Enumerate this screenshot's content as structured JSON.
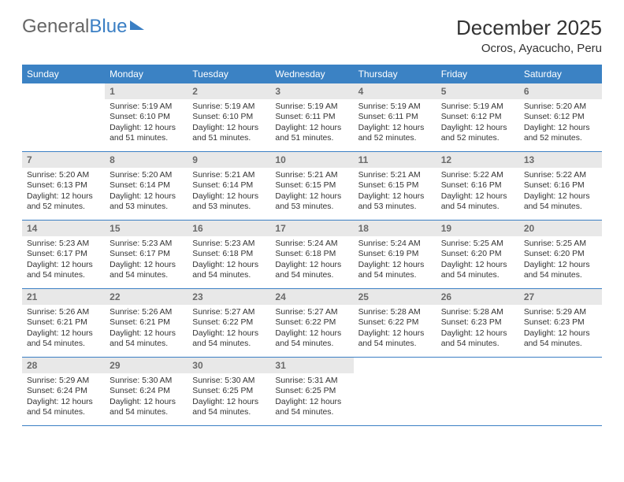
{
  "logo": {
    "part1": "General",
    "part2": "Blue"
  },
  "title": "December 2025",
  "location": "Ocros, Ayacucho, Peru",
  "colors": {
    "header_bg": "#3b82c4",
    "header_text": "#ffffff",
    "daynum_bg": "#e8e8e8",
    "daynum_text": "#6a6a6a",
    "body_text": "#333333",
    "row_border": "#3b7fc4"
  },
  "weekdays": [
    "Sunday",
    "Monday",
    "Tuesday",
    "Wednesday",
    "Thursday",
    "Friday",
    "Saturday"
  ],
  "weeks": [
    [
      {
        "empty": true
      },
      {
        "n": "1",
        "sunrise": "5:19 AM",
        "sunset": "6:10 PM",
        "daylight": "12 hours and 51 minutes."
      },
      {
        "n": "2",
        "sunrise": "5:19 AM",
        "sunset": "6:10 PM",
        "daylight": "12 hours and 51 minutes."
      },
      {
        "n": "3",
        "sunrise": "5:19 AM",
        "sunset": "6:11 PM",
        "daylight": "12 hours and 51 minutes."
      },
      {
        "n": "4",
        "sunrise": "5:19 AM",
        "sunset": "6:11 PM",
        "daylight": "12 hours and 52 minutes."
      },
      {
        "n": "5",
        "sunrise": "5:19 AM",
        "sunset": "6:12 PM",
        "daylight": "12 hours and 52 minutes."
      },
      {
        "n": "6",
        "sunrise": "5:20 AM",
        "sunset": "6:12 PM",
        "daylight": "12 hours and 52 minutes."
      }
    ],
    [
      {
        "n": "7",
        "sunrise": "5:20 AM",
        "sunset": "6:13 PM",
        "daylight": "12 hours and 52 minutes."
      },
      {
        "n": "8",
        "sunrise": "5:20 AM",
        "sunset": "6:14 PM",
        "daylight": "12 hours and 53 minutes."
      },
      {
        "n": "9",
        "sunrise": "5:21 AM",
        "sunset": "6:14 PM",
        "daylight": "12 hours and 53 minutes."
      },
      {
        "n": "10",
        "sunrise": "5:21 AM",
        "sunset": "6:15 PM",
        "daylight": "12 hours and 53 minutes."
      },
      {
        "n": "11",
        "sunrise": "5:21 AM",
        "sunset": "6:15 PM",
        "daylight": "12 hours and 53 minutes."
      },
      {
        "n": "12",
        "sunrise": "5:22 AM",
        "sunset": "6:16 PM",
        "daylight": "12 hours and 54 minutes."
      },
      {
        "n": "13",
        "sunrise": "5:22 AM",
        "sunset": "6:16 PM",
        "daylight": "12 hours and 54 minutes."
      }
    ],
    [
      {
        "n": "14",
        "sunrise": "5:23 AM",
        "sunset": "6:17 PM",
        "daylight": "12 hours and 54 minutes."
      },
      {
        "n": "15",
        "sunrise": "5:23 AM",
        "sunset": "6:17 PM",
        "daylight": "12 hours and 54 minutes."
      },
      {
        "n": "16",
        "sunrise": "5:23 AM",
        "sunset": "6:18 PM",
        "daylight": "12 hours and 54 minutes."
      },
      {
        "n": "17",
        "sunrise": "5:24 AM",
        "sunset": "6:18 PM",
        "daylight": "12 hours and 54 minutes."
      },
      {
        "n": "18",
        "sunrise": "5:24 AM",
        "sunset": "6:19 PM",
        "daylight": "12 hours and 54 minutes."
      },
      {
        "n": "19",
        "sunrise": "5:25 AM",
        "sunset": "6:20 PM",
        "daylight": "12 hours and 54 minutes."
      },
      {
        "n": "20",
        "sunrise": "5:25 AM",
        "sunset": "6:20 PM",
        "daylight": "12 hours and 54 minutes."
      }
    ],
    [
      {
        "n": "21",
        "sunrise": "5:26 AM",
        "sunset": "6:21 PM",
        "daylight": "12 hours and 54 minutes."
      },
      {
        "n": "22",
        "sunrise": "5:26 AM",
        "sunset": "6:21 PM",
        "daylight": "12 hours and 54 minutes."
      },
      {
        "n": "23",
        "sunrise": "5:27 AM",
        "sunset": "6:22 PM",
        "daylight": "12 hours and 54 minutes."
      },
      {
        "n": "24",
        "sunrise": "5:27 AM",
        "sunset": "6:22 PM",
        "daylight": "12 hours and 54 minutes."
      },
      {
        "n": "25",
        "sunrise": "5:28 AM",
        "sunset": "6:22 PM",
        "daylight": "12 hours and 54 minutes."
      },
      {
        "n": "26",
        "sunrise": "5:28 AM",
        "sunset": "6:23 PM",
        "daylight": "12 hours and 54 minutes."
      },
      {
        "n": "27",
        "sunrise": "5:29 AM",
        "sunset": "6:23 PM",
        "daylight": "12 hours and 54 minutes."
      }
    ],
    [
      {
        "n": "28",
        "sunrise": "5:29 AM",
        "sunset": "6:24 PM",
        "daylight": "12 hours and 54 minutes."
      },
      {
        "n": "29",
        "sunrise": "5:30 AM",
        "sunset": "6:24 PM",
        "daylight": "12 hours and 54 minutes."
      },
      {
        "n": "30",
        "sunrise": "5:30 AM",
        "sunset": "6:25 PM",
        "daylight": "12 hours and 54 minutes."
      },
      {
        "n": "31",
        "sunrise": "5:31 AM",
        "sunset": "6:25 PM",
        "daylight": "12 hours and 54 minutes."
      },
      {
        "empty": true
      },
      {
        "empty": true
      },
      {
        "empty": true
      }
    ]
  ],
  "labels": {
    "sunrise": "Sunrise:",
    "sunset": "Sunset:",
    "daylight": "Daylight:"
  }
}
